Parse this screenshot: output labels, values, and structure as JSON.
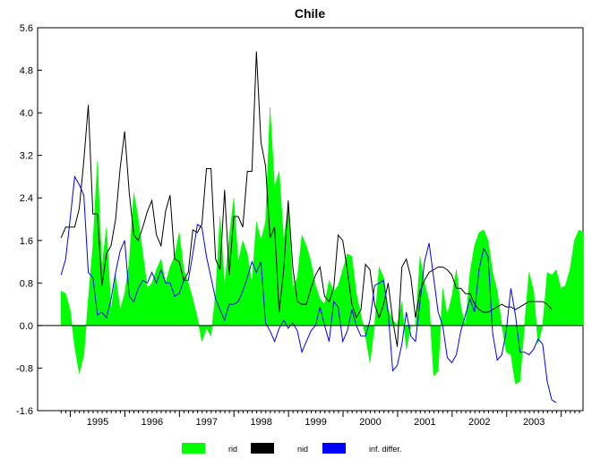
{
  "chart_data": {
    "type": "line",
    "title": "Chile",
    "xlabel": "",
    "ylabel": "",
    "ylim": [
      -1.6,
      5.6
    ],
    "yticks": [
      "5.6",
      "4.8",
      "4.0",
      "3.2",
      "2.4",
      "1.6",
      "0.8",
      "0.0",
      "-0.8",
      "-1.6"
    ],
    "xlim": [
      1994.4,
      2004.4
    ],
    "year_labels": [
      "1995",
      "1996",
      "1997",
      "1998",
      "1999",
      "2000",
      "2001",
      "2002",
      "2003"
    ],
    "grid": false,
    "legend_position": "bottom",
    "colors": {
      "rid": "#00ff00",
      "nid": "#000000",
      "inf": "#0000ff"
    },
    "series": [
      {
        "name": "rid",
        "style": "area",
        "x0": 1994.83,
        "step": 0.0833,
        "values": [
          0.65,
          0.6,
          0.3,
          -0.4,
          -0.9,
          -0.55,
          0.5,
          1.5,
          3.1,
          1.1,
          1.85,
          0.3,
          0.95,
          0.3,
          0.6,
          1.2,
          2.5,
          2.0,
          1.35,
          0.7,
          0.8,
          1.05,
          1.25,
          0.8,
          1.1,
          1.3,
          1.75,
          1.05,
          0.8,
          0.5,
          0.15,
          -0.3,
          -0.05,
          -0.2,
          0.6,
          2.05,
          0.75,
          1.65,
          2.4,
          1.2,
          1.6,
          1.35,
          0.8,
          1.95,
          1.6,
          1.95,
          4.1,
          2.6,
          2.9,
          1.6,
          2.25,
          0.7,
          0.9,
          1.7,
          1.5,
          1.2,
          0.75,
          0.5,
          0.4,
          0.85,
          0.65,
          0.75,
          1.05,
          1.35,
          1.3,
          0.6,
          0.2,
          -0.2,
          -0.7,
          0.0,
          1.1,
          0.9,
          0.3,
          0.1,
          0.0,
          0.45,
          -0.45,
          0.0,
          0.0,
          1.3,
          0.8,
          0.45,
          -0.95,
          -0.85,
          0.7,
          0.2,
          0.55,
          1.05,
          0.35,
          0.0,
          1.0,
          1.5,
          1.75,
          1.8,
          1.6,
          1.0,
          0.65,
          0.0,
          -0.5,
          -0.55,
          -1.1,
          -1.05,
          0.0,
          1.0,
          0.65,
          -0.35,
          0.0,
          1.0,
          0.95,
          1.05,
          0.7,
          0.75,
          1.05,
          1.6,
          1.8,
          1.75
        ]
      },
      {
        "name": "nid",
        "style": "line",
        "x0": 1994.83,
        "step": 0.0833,
        "values": [
          1.65,
          1.85,
          1.85,
          1.85,
          2.2,
          3.1,
          4.15,
          2.1,
          2.1,
          0.75,
          1.35,
          1.5,
          2.0,
          2.95,
          3.65,
          2.5,
          1.7,
          1.6,
          1.85,
          2.15,
          2.35,
          1.7,
          1.5,
          2.15,
          2.45,
          1.25,
          1.2,
          0.85,
          1.0,
          1.8,
          1.75,
          1.9,
          2.95,
          2.95,
          1.25,
          1.05,
          2.55,
          0.95,
          2.05,
          2.05,
          1.85,
          2.9,
          2.9,
          5.15,
          3.45,
          3.0,
          1.65,
          1.85,
          0.25,
          1.05,
          2.35,
          1.1,
          0.45,
          0.4,
          0.4,
          0.7,
          0.95,
          1.1,
          0.55,
          0.45,
          0.7,
          1.7,
          1.6,
          1.05,
          0.4,
          0.15,
          0.3,
          1.15,
          1.05,
          0.4,
          0.15,
          0.4,
          0.8,
          0.1,
          -0.4,
          1.1,
          1.25,
          0.9,
          0.15,
          0.65,
          0.85,
          1.0,
          1.05,
          1.1,
          1.1,
          1.05,
          0.95,
          0.7,
          0.7,
          0.6,
          0.6,
          0.4,
          0.3,
          0.25,
          0.25,
          0.3,
          0.35,
          0.4,
          0.35,
          0.35,
          0.3,
          0.35,
          0.4,
          0.45,
          0.45,
          0.45,
          0.45,
          0.4,
          0.3
        ]
      },
      {
        "name": "inf. differ.",
        "style": "line",
        "x0": 1994.83,
        "step": 0.0833,
        "values": [
          0.95,
          1.25,
          2.0,
          2.8,
          2.65,
          2.45,
          1.0,
          0.9,
          0.2,
          0.25,
          0.15,
          0.5,
          1.0,
          1.4,
          1.6,
          0.55,
          0.45,
          0.7,
          0.85,
          0.8,
          1.0,
          0.8,
          1.05,
          0.8,
          0.8,
          0.55,
          0.6,
          0.85,
          0.85,
          1.35,
          1.9,
          1.85,
          1.3,
          0.9,
          0.5,
          0.3,
          0.1,
          0.4,
          0.4,
          0.45,
          0.65,
          0.9,
          1.2,
          1.0,
          1.2,
          0.05,
          -0.1,
          -0.3,
          -0.05,
          0.1,
          -0.05,
          0.05,
          -0.1,
          -0.5,
          -0.3,
          -0.1,
          0.0,
          0.35,
          0.0,
          -0.3,
          0.45,
          0.35,
          -0.3,
          -0.1,
          0.3,
          0.0,
          -0.2,
          -0.2,
          0.1,
          0.75,
          0.8,
          0.85,
          0.25,
          -0.85,
          -0.75,
          -0.35,
          0.25,
          -0.2,
          -0.3,
          0.45,
          1.2,
          1.55,
          0.9,
          0.25,
          0.0,
          -0.6,
          -0.7,
          -0.55,
          -0.1,
          0.2,
          0.5,
          0.25,
          1.05,
          1.45,
          1.3,
          -0.15,
          -0.65,
          -0.55,
          -0.1,
          0.7,
          0.2,
          -0.5,
          -0.5,
          -0.55,
          -0.45,
          -0.25,
          -0.35,
          -1.05,
          -1.4,
          -1.45
        ]
      }
    ],
    "legend": [
      {
        "label": "rid",
        "key": "rid"
      },
      {
        "label": "nid",
        "key": "nid"
      },
      {
        "label": "inf. differ.",
        "key": "inf"
      }
    ]
  }
}
